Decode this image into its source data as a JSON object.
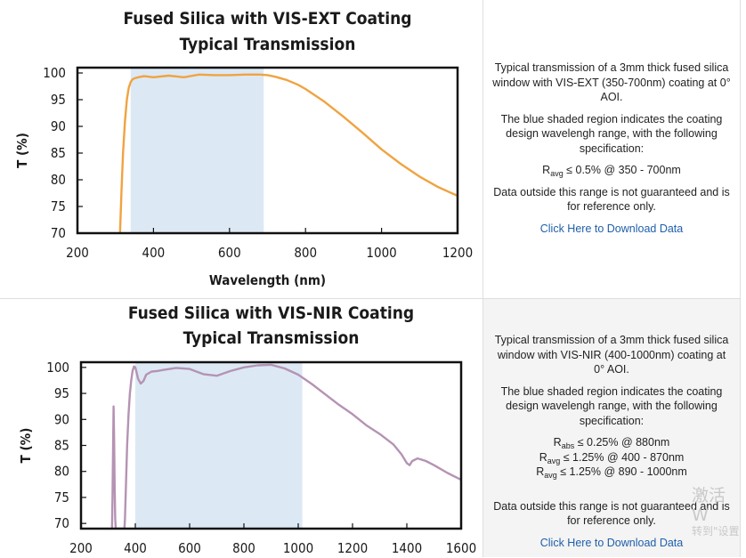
{
  "colors": {
    "shade": "#dce9f5",
    "curve1": "#f0a341",
    "curve2": "#b593b3",
    "link": "#1f5fa9"
  },
  "chart_data": [
    {
      "type": "line",
      "title": "Fused Silica with VIS-EXT Coating",
      "subtitle": "Typical Transmission",
      "xlabel": "Wavelength (nm)",
      "ylabel": "T (%)",
      "xlim": [
        200,
        1200
      ],
      "ylim": [
        70,
        101
      ],
      "xticks": [
        "200",
        "400",
        "600",
        "800",
        "1000",
        "1200"
      ],
      "yticks": [
        "70",
        "75",
        "80",
        "85",
        "90",
        "95",
        "100"
      ],
      "grid": false,
      "shaded_region": [
        340,
        690
      ],
      "series": [
        {
          "x": [
            312,
            316,
            320,
            325,
            330,
            335,
            340,
            345,
            350,
            360,
            375,
            400,
            440,
            480,
            520,
            560,
            600,
            640,
            680,
            700,
            720,
            750,
            780,
            800,
            850,
            900,
            950,
            1000,
            1050,
            1100,
            1150,
            1200
          ],
          "y": [
            70,
            78,
            85,
            91,
            95,
            97.2,
            98.3,
            98.8,
            99.0,
            99.2,
            99.4,
            99.2,
            99.5,
            99.2,
            99.7,
            99.6,
            99.6,
            99.7,
            99.7,
            99.6,
            99.3,
            98.7,
            97.8,
            97.0,
            94.6,
            91.8,
            88.8,
            85.7,
            83.0,
            80.6,
            78.6,
            77.0
          ]
        }
      ]
    },
    {
      "type": "line",
      "title": "Fused Silica with VIS-NIR Coating",
      "subtitle": "Typical Transmission",
      "xlabel": "",
      "ylabel": "T (%)",
      "xlim": [
        200,
        1600
      ],
      "ylim": [
        69,
        101
      ],
      "xticks": [
        "200",
        "400",
        "600",
        "800",
        "1000",
        "1200",
        "1400",
        "1600"
      ],
      "yticks": [
        "70",
        "75",
        "80",
        "85",
        "90",
        "95",
        "100"
      ],
      "grid": false,
      "shaded_region": [
        400,
        1015
      ],
      "series": [
        {
          "x": [
            314,
            316,
            318,
            320,
            322,
            324,
            326,
            328,
            330,
            360,
            362,
            366,
            370,
            375,
            380,
            385,
            390,
            395,
            400,
            405,
            410,
            420,
            430,
            440,
            460,
            480,
            500,
            550,
            600,
            650,
            700,
            750,
            800,
            850,
            900,
            950,
            1000,
            1050,
            1100,
            1150,
            1200,
            1250,
            1300,
            1350,
            1380,
            1400,
            1410,
            1420,
            1440,
            1470,
            1500,
            1550,
            1600
          ],
          "y": [
            69,
            75,
            84,
            92.5,
            86,
            77,
            71,
            69,
            69,
            69,
            71,
            78,
            85,
            91,
            95,
            97.5,
            99.3,
            100.2,
            100.0,
            99.0,
            97.8,
            96.9,
            97.4,
            98.6,
            99.2,
            99.3,
            99.5,
            99.9,
            99.7,
            98.7,
            98.4,
            99.3,
            100.0,
            100.4,
            100.5,
            99.8,
            98.6,
            96.8,
            94.8,
            92.8,
            91.0,
            88.9,
            87.2,
            85.2,
            83.3,
            81.6,
            81.2,
            82.0,
            82.5,
            82.0,
            81.2,
            79.7,
            78.4
          ]
        }
      ]
    }
  ],
  "panel1": {
    "desc": "Typical transmission of a 3mm thick fused silica window with VIS-EXT (350-700nm) coating at 0° AOI.",
    "shade_note": "The blue shaded region indicates the coating design wavelengh range, with the following specification:",
    "spec": [
      {
        "main": "R",
        "sub": "avg",
        "rest": "≤ 0.5% @ 350 - 700nm"
      }
    ],
    "disclaimer": "Data outside this range is not guaranteed and is for reference only.",
    "download_label": "Click Here to Download Data"
  },
  "panel2": {
    "desc": "Typical transmission of a 3mm thick fused silica window with VIS-NIR (400-1000nm) coating at 0° AOI.",
    "shade_note": "The blue shaded region indicates the coating design wavelengh range, with the following specification:",
    "spec": [
      {
        "main": "R",
        "sub": "abs",
        "rest": "≤ 0.25% @ 880nm"
      },
      {
        "main": "R",
        "sub": "avg",
        "rest": "≤ 1.25% @ 400 - 870nm"
      },
      {
        "main": "R",
        "sub": "avg",
        "rest": "≤ 1.25% @ 890 - 1000nm"
      }
    ],
    "disclaimer": "Data outside this range is not guaranteed and is for reference only.",
    "download_label": "Click Here to Download Data"
  },
  "watermark": {
    "line1": "激活 W",
    "line2": "转到\"设置"
  }
}
